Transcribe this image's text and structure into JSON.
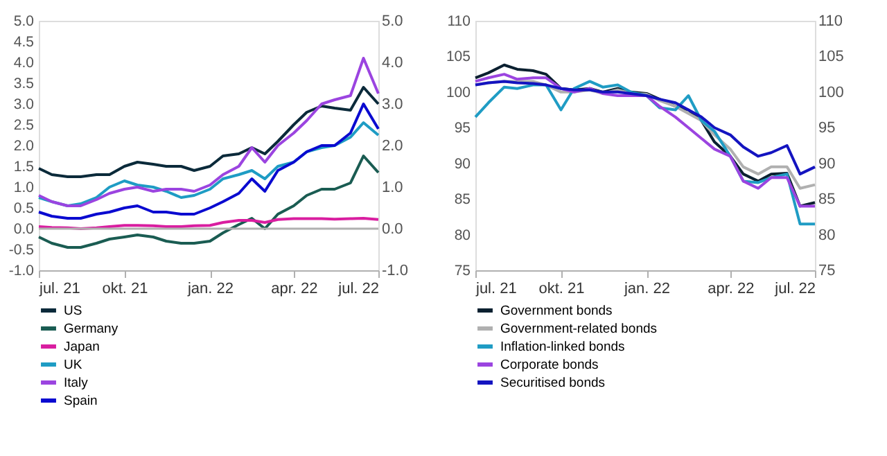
{
  "chart_data": [
    {
      "type": "line",
      "x": [
        "2021-07-01",
        "2021-07-15",
        "2021-08-01",
        "2021-08-15",
        "2021-09-01",
        "2021-09-15",
        "2021-10-01",
        "2021-10-15",
        "2021-11-01",
        "2021-11-15",
        "2021-12-01",
        "2021-12-15",
        "2022-01-01",
        "2022-01-15",
        "2022-02-01",
        "2022-02-15",
        "2022-03-01",
        "2022-03-15",
        "2022-04-01",
        "2022-04-15",
        "2022-05-01",
        "2022-05-15",
        "2022-06-01",
        "2022-06-15",
        "2022-07-01"
      ],
      "series": [
        {
          "name": "US",
          "color": "#0b2a3a",
          "values": [
            1.45,
            1.3,
            1.25,
            1.25,
            1.3,
            1.3,
            1.5,
            1.6,
            1.55,
            1.5,
            1.5,
            1.4,
            1.5,
            1.75,
            1.8,
            1.95,
            1.8,
            2.1,
            2.5,
            2.8,
            2.95,
            2.9,
            2.85,
            3.4,
            3.0
          ]
        },
        {
          "name": "Germany",
          "color": "#1a5c52",
          "values": [
            -0.2,
            -0.35,
            -0.45,
            -0.45,
            -0.35,
            -0.25,
            -0.2,
            -0.15,
            -0.2,
            -0.3,
            -0.35,
            -0.35,
            -0.3,
            -0.1,
            0.1,
            0.25,
            0.0,
            0.35,
            0.55,
            0.8,
            0.95,
            0.95,
            1.1,
            1.75,
            1.35
          ]
        },
        {
          "name": "Japan",
          "color": "#d91ea0",
          "values": [
            0.05,
            0.03,
            0.02,
            0.0,
            0.02,
            0.05,
            0.08,
            0.08,
            0.07,
            0.05,
            0.05,
            0.07,
            0.08,
            0.15,
            0.2,
            0.2,
            0.15,
            0.22,
            0.24,
            0.24,
            0.24,
            0.23,
            0.24,
            0.25,
            0.22
          ]
        },
        {
          "name": "UK",
          "color": "#1e9cc4",
          "values": [
            0.75,
            0.65,
            0.55,
            0.6,
            0.75,
            1.0,
            1.15,
            1.05,
            1.0,
            0.9,
            0.75,
            0.8,
            0.95,
            1.2,
            1.3,
            1.4,
            1.2,
            1.5,
            1.6,
            1.85,
            1.95,
            2.0,
            2.2,
            2.55,
            2.25
          ]
        },
        {
          "name": "Italy",
          "color": "#9b44e0",
          "values": [
            0.8,
            0.65,
            0.55,
            0.55,
            0.7,
            0.85,
            0.95,
            1.0,
            0.9,
            0.95,
            0.95,
            0.9,
            1.05,
            1.3,
            1.5,
            1.95,
            1.6,
            2.0,
            2.3,
            2.6,
            3.0,
            3.1,
            3.2,
            4.1,
            3.25
          ]
        },
        {
          "name": "Spain",
          "color": "#0a0ad0",
          "values": [
            0.4,
            0.3,
            0.25,
            0.25,
            0.35,
            0.4,
            0.5,
            0.55,
            0.4,
            0.4,
            0.35,
            0.35,
            0.5,
            0.65,
            0.85,
            1.2,
            0.9,
            1.4,
            1.6,
            1.85,
            2.0,
            2.0,
            2.3,
            3.0,
            2.4
          ]
        }
      ],
      "xlim": [
        "2021-07-01",
        "2022-07-01"
      ],
      "xticks": [
        {
          "value": "2021-07-01",
          "label": "jul. 21"
        },
        {
          "value": "2021-10-01",
          "label": "okt. 21"
        },
        {
          "value": "2022-01-01",
          "label": "jan. 22"
        },
        {
          "value": "2022-04-01",
          "label": "apr. 22"
        },
        {
          "value": "2022-07-01",
          "label": "jul. 22"
        }
      ],
      "ylim": [
        -1,
        5
      ],
      "yticks": [
        {
          "value": -1,
          "label": "-1.0"
        },
        {
          "value": -0.5,
          "label": "-0.5"
        },
        {
          "value": 0,
          "label": "0.0"
        },
        {
          "value": 0.5,
          "label": "0.5"
        },
        {
          "value": 1,
          "label": "1.0"
        },
        {
          "value": 1.5,
          "label": "1.5"
        },
        {
          "value": 2,
          "label": "2.0"
        },
        {
          "value": 2.5,
          "label": "2.5"
        },
        {
          "value": 3,
          "label": "3.0"
        },
        {
          "value": 3.5,
          "label": "3.5"
        },
        {
          "value": 4,
          "label": "4.0"
        },
        {
          "value": 4.5,
          "label": "4.5"
        },
        {
          "value": 5,
          "label": "5.0"
        }
      ],
      "y2lim": [
        -1,
        5
      ],
      "y2ticks": [
        {
          "value": -1,
          "label": "-1.0"
        },
        {
          "value": 0,
          "label": "0.0"
        },
        {
          "value": 1,
          "label": "1.0"
        },
        {
          "value": 2,
          "label": "2.0"
        },
        {
          "value": 3,
          "label": "3.0"
        },
        {
          "value": 4,
          "label": "4.0"
        },
        {
          "value": 5,
          "label": "5.0"
        }
      ],
      "ref_lines": [
        {
          "axis": "y",
          "value": 0,
          "color": "#b0b0b0"
        }
      ],
      "grid": false,
      "legend": "bottom"
    },
    {
      "type": "line",
      "x": [
        "2021-07-01",
        "2021-07-15",
        "2021-08-01",
        "2021-08-15",
        "2021-09-01",
        "2021-09-15",
        "2021-10-01",
        "2021-10-15",
        "2021-11-01",
        "2021-11-15",
        "2021-12-01",
        "2021-12-15",
        "2022-01-01",
        "2022-01-15",
        "2022-02-01",
        "2022-02-15",
        "2022-03-01",
        "2022-03-15",
        "2022-04-01",
        "2022-04-15",
        "2022-05-01",
        "2022-05-15",
        "2022-06-01",
        "2022-06-15",
        "2022-07-01"
      ],
      "series": [
        {
          "name": "Government bonds",
          "color": "#0b2030",
          "values": [
            102,
            102.7,
            103.8,
            103.2,
            103,
            102.5,
            100.5,
            100.3,
            100.5,
            100,
            100.5,
            100,
            99.8,
            99,
            98,
            97.5,
            96,
            93,
            91,
            88.5,
            87.5,
            88.5,
            88.6,
            84,
            84.5
          ]
        },
        {
          "name": "Government-related bonds",
          "color": "#b0b0b0",
          "values": [
            101,
            101.3,
            101.5,
            101.5,
            101.5,
            101,
            100,
            100,
            100.3,
            99.8,
            100.3,
            99.8,
            99.7,
            98.8,
            98,
            97,
            96,
            94,
            92,
            89.5,
            88.5,
            89.5,
            89.5,
            86.5,
            87
          ]
        },
        {
          "name": "Inflation-linked bonds",
          "color": "#1f9cc4",
          "values": [
            96.5,
            98.5,
            100.7,
            100.5,
            101,
            101,
            97.5,
            100.5,
            101.5,
            100.7,
            101,
            100,
            99.5,
            97.8,
            97.5,
            99.5,
            96,
            94.5,
            91,
            87.5,
            87.3,
            88,
            88.5,
            81.5,
            81.5
          ]
        },
        {
          "name": "Corporate bonds",
          "color": "#9b44e0",
          "values": [
            101.5,
            102,
            102.5,
            101.8,
            102,
            102,
            100.5,
            100,
            100.5,
            99.8,
            99.5,
            99.5,
            99.5,
            98,
            96.5,
            95,
            93.5,
            92,
            91,
            87.5,
            86.5,
            88,
            88,
            84,
            84
          ]
        },
        {
          "name": "Securitised bonds",
          "color": "#1414c0",
          "values": [
            101,
            101.3,
            101.5,
            101.3,
            101.2,
            101,
            100.5,
            100.3,
            100.3,
            100,
            100,
            99.8,
            99.5,
            99,
            98.5,
            97.5,
            96.5,
            95,
            94,
            92.3,
            91,
            91.5,
            92.5,
            88.5,
            89.5
          ]
        }
      ],
      "xlim": [
        "2021-07-01",
        "2022-07-01"
      ],
      "xticks": [
        {
          "value": "2021-07-01",
          "label": "jul. 21"
        },
        {
          "value": "2021-10-01",
          "label": "okt. 21"
        },
        {
          "value": "2022-01-01",
          "label": "jan. 22"
        },
        {
          "value": "2022-04-01",
          "label": "apr. 22"
        },
        {
          "value": "2022-07-01",
          "label": "jul. 22"
        }
      ],
      "ylim": [
        75,
        110
      ],
      "yticks": [
        75,
        80,
        85,
        90,
        95,
        100,
        105,
        110
      ],
      "y2lim": [
        75,
        110
      ],
      "y2ticks": [
        75,
        80,
        85,
        90,
        95,
        100,
        105,
        110
      ],
      "grid": false,
      "legend": "bottom"
    }
  ]
}
